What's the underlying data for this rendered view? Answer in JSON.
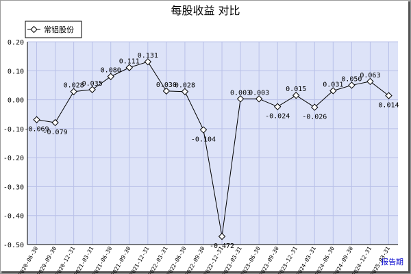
{
  "page": {
    "title": "每股收益  对比",
    "period_label": "报告期"
  },
  "colors": {
    "plot_bg": "#dde3f8",
    "grid": "#b8c0e8",
    "line": "#000000",
    "marker_fill": "#ffffff"
  },
  "chart_data": {
    "type": "line",
    "title": "每股收益  对比",
    "xlabel": "",
    "ylabel": "",
    "ylim": [
      -0.5,
      0.2
    ],
    "yticks": [
      0.2,
      0.1,
      0.0,
      -0.1,
      -0.2,
      -0.3,
      -0.4,
      -0.5
    ],
    "ytick_labels": [
      "0.20",
      "0.10",
      "0.00",
      "-0.10",
      "-0.20",
      "-0.30",
      "-0.40",
      "-0.50"
    ],
    "grid": true,
    "legend": "top-left",
    "categories": [
      "2020-06-30",
      "2020-09-30",
      "2020-12-31",
      "2021-03-31",
      "2021-06-30",
      "2021-09-30",
      "2021-12-31",
      "2022-03-31",
      "2022-06-30",
      "2022-09-30",
      "2022-12-31",
      "2023-03-31",
      "2023-06-30",
      "2023-09-30",
      "2023-12-31",
      "2024-03-31",
      "2024-06-30",
      "2024-09-30",
      "2024-12-31",
      "2025-03-31"
    ],
    "series": [
      {
        "name": "常铝股份",
        "values": [
          -0.069,
          -0.079,
          0.028,
          0.035,
          0.08,
          0.111,
          0.131,
          0.03,
          0.028,
          -0.104,
          -0.472,
          0.003,
          0.003,
          -0.024,
          0.015,
          -0.026,
          0.031,
          0.05,
          0.063,
          0.014
        ],
        "labels": [
          "-0.069",
          "-0.079",
          "0.028",
          "0.035",
          "0.080",
          "0.111",
          "0.131",
          "0.030",
          "0.028",
          "-0.104",
          "-0.472",
          "0.003",
          "0.003",
          "-0.024",
          "0.015",
          "-0.026",
          "0.031",
          "0.050",
          "0.063",
          "0.014"
        ]
      }
    ]
  }
}
